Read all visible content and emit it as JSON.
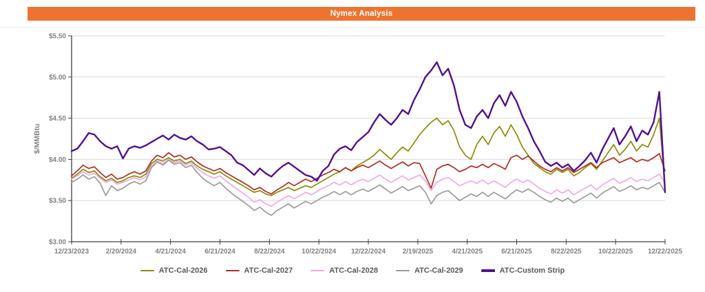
{
  "header": {
    "title": "Nymex Analysis",
    "bg_color": "#EE7330",
    "text_color": "#FFFFFF"
  },
  "chart_data": {
    "type": "line",
    "title": "Nymex Analysis",
    "xlabel": "",
    "ylabel": "$/MMBtu",
    "ylim": [
      3.0,
      5.5
    ],
    "ytick_step": 0.5,
    "ytick_labels": [
      "$3.00",
      "$3.50",
      "$4.00",
      "$4.50",
      "$5.00",
      "$5.50"
    ],
    "xtick_labels": [
      "12/23/2023",
      "2/20/2024",
      "4/21/2024",
      "6/21/2024",
      "8/22/2024",
      "10/22/2024",
      "12/22/2024",
      "2/19/2025",
      "4/21/2025",
      "6/21/2025",
      "8/22/2025",
      "10/22/2025",
      "12/22/2025"
    ],
    "x_resolution": "weekly",
    "grid": "horizontal",
    "grid_color": "#D9D9D9",
    "axis_color": "#3F3F3F",
    "tick_label_color": "#808080",
    "legend_position": "bottom",
    "series": [
      {
        "name": "ATC-Cal-2026",
        "color": "#8B8B07",
        "width": 1.7,
        "values": [
          3.77,
          3.82,
          3.88,
          3.84,
          3.86,
          3.79,
          3.74,
          3.77,
          3.72,
          3.74,
          3.78,
          3.8,
          3.78,
          3.82,
          3.95,
          4.0,
          3.98,
          4.02,
          3.98,
          4.0,
          3.95,
          3.98,
          3.92,
          3.88,
          3.85,
          3.82,
          3.85,
          3.8,
          3.76,
          3.72,
          3.68,
          3.64,
          3.6,
          3.62,
          3.58,
          3.56,
          3.6,
          3.63,
          3.66,
          3.62,
          3.65,
          3.68,
          3.66,
          3.7,
          3.74,
          3.78,
          3.82,
          3.85,
          3.9,
          3.86,
          3.92,
          3.96,
          4.0,
          4.05,
          4.12,
          4.06,
          4.0,
          4.08,
          4.15,
          4.1,
          4.2,
          4.3,
          4.38,
          4.45,
          4.5,
          4.42,
          4.47,
          4.35,
          4.15,
          4.05,
          4.0,
          4.18,
          4.28,
          4.18,
          4.32,
          4.4,
          4.28,
          4.42,
          4.3,
          4.15,
          4.05,
          3.95,
          3.9,
          3.85,
          3.82,
          3.88,
          3.84,
          3.88,
          3.8,
          3.84,
          3.9,
          3.95,
          3.88,
          3.98,
          4.08,
          4.18,
          4.05,
          4.12,
          4.22,
          4.1,
          4.18,
          4.15,
          4.3,
          4.5,
          3.66
        ]
      },
      {
        "name": "ATC-Cal-2027",
        "color": "#B02B23",
        "width": 1.7,
        "values": [
          3.8,
          3.86,
          3.93,
          3.89,
          3.91,
          3.84,
          3.78,
          3.82,
          3.76,
          3.78,
          3.82,
          3.85,
          3.82,
          3.86,
          3.98,
          4.05,
          4.02,
          4.08,
          4.03,
          4.05,
          4.0,
          4.03,
          3.97,
          3.92,
          3.89,
          3.86,
          3.89,
          3.84,
          3.8,
          3.76,
          3.72,
          3.68,
          3.63,
          3.66,
          3.61,
          3.58,
          3.63,
          3.67,
          3.72,
          3.68,
          3.72,
          3.76,
          3.73,
          3.77,
          3.81,
          3.84,
          3.88,
          3.85,
          3.9,
          3.86,
          3.9,
          3.93,
          3.9,
          3.94,
          3.98,
          3.93,
          3.89,
          3.93,
          3.97,
          3.92,
          3.96,
          3.95,
          3.8,
          3.65,
          3.88,
          3.92,
          3.94,
          3.9,
          3.85,
          3.88,
          3.92,
          3.9,
          3.94,
          3.9,
          3.95,
          3.92,
          3.88,
          4.02,
          4.05,
          4.0,
          4.04,
          3.98,
          3.92,
          3.88,
          3.85,
          3.9,
          3.86,
          3.9,
          3.84,
          3.88,
          3.92,
          3.96,
          3.9,
          3.96,
          3.99,
          4.02,
          3.96,
          3.99,
          4.02,
          3.97,
          4.0,
          3.98,
          4.02,
          4.07,
          3.86
        ]
      },
      {
        "name": "ATC-Cal-2028",
        "color": "#EFA9E6",
        "width": 1.7,
        "values": [
          3.76,
          3.8,
          3.85,
          3.81,
          3.83,
          3.77,
          3.72,
          3.75,
          3.7,
          3.72,
          3.75,
          3.78,
          3.75,
          3.79,
          3.92,
          3.98,
          3.95,
          4.0,
          3.96,
          3.98,
          3.93,
          3.96,
          3.89,
          3.84,
          3.8,
          3.77,
          3.8,
          3.74,
          3.69,
          3.64,
          3.59,
          3.54,
          3.48,
          3.51,
          3.46,
          3.43,
          3.48,
          3.52,
          3.56,
          3.52,
          3.56,
          3.6,
          3.57,
          3.61,
          3.65,
          3.68,
          3.72,
          3.69,
          3.73,
          3.69,
          3.73,
          3.76,
          3.73,
          3.77,
          3.81,
          3.76,
          3.72,
          3.76,
          3.8,
          3.75,
          3.78,
          3.81,
          3.74,
          3.62,
          3.72,
          3.76,
          3.78,
          3.73,
          3.68,
          3.71,
          3.74,
          3.71,
          3.75,
          3.7,
          3.74,
          3.7,
          3.66,
          3.72,
          3.76,
          3.72,
          3.75,
          3.7,
          3.65,
          3.61,
          3.58,
          3.63,
          3.59,
          3.63,
          3.57,
          3.61,
          3.65,
          3.69,
          3.63,
          3.69,
          3.73,
          3.77,
          3.71,
          3.74,
          3.78,
          3.73,
          3.76,
          3.74,
          3.78,
          3.82,
          3.71
        ]
      },
      {
        "name": "ATC-Cal-2029",
        "color": "#9B9B9B",
        "width": 1.7,
        "values": [
          3.72,
          3.76,
          3.81,
          3.76,
          3.79,
          3.71,
          3.56,
          3.68,
          3.62,
          3.65,
          3.7,
          3.73,
          3.7,
          3.74,
          3.9,
          3.97,
          3.93,
          3.99,
          3.94,
          3.96,
          3.9,
          3.93,
          3.84,
          3.77,
          3.72,
          3.68,
          3.72,
          3.65,
          3.59,
          3.54,
          3.49,
          3.44,
          3.38,
          3.42,
          3.36,
          3.32,
          3.38,
          3.42,
          3.46,
          3.41,
          3.45,
          3.49,
          3.46,
          3.5,
          3.54,
          3.57,
          3.61,
          3.57,
          3.61,
          3.57,
          3.61,
          3.64,
          3.61,
          3.65,
          3.69,
          3.64,
          3.59,
          3.63,
          3.67,
          3.62,
          3.65,
          3.68,
          3.6,
          3.46,
          3.56,
          3.6,
          3.62,
          3.56,
          3.5,
          3.54,
          3.58,
          3.55,
          3.6,
          3.55,
          3.6,
          3.56,
          3.52,
          3.58,
          3.63,
          3.6,
          3.64,
          3.6,
          3.55,
          3.51,
          3.48,
          3.53,
          3.49,
          3.53,
          3.47,
          3.51,
          3.55,
          3.59,
          3.53,
          3.59,
          3.63,
          3.67,
          3.61,
          3.64,
          3.68,
          3.63,
          3.66,
          3.64,
          3.68,
          3.72,
          3.6
        ]
      },
      {
        "name": "ATC-Custom Strip",
        "color": "#52108F",
        "width": 2.4,
        "values": [
          4.1,
          4.13,
          4.22,
          4.32,
          4.3,
          4.22,
          4.16,
          4.13,
          4.16,
          4.01,
          4.13,
          4.16,
          4.14,
          4.17,
          4.21,
          4.25,
          4.29,
          4.24,
          4.3,
          4.26,
          4.24,
          4.28,
          4.22,
          4.18,
          4.12,
          4.13,
          4.15,
          4.1,
          4.05,
          3.96,
          3.93,
          3.87,
          3.81,
          3.89,
          3.83,
          3.79,
          3.86,
          3.92,
          3.96,
          3.91,
          3.86,
          3.81,
          3.79,
          3.74,
          3.86,
          3.92,
          4.06,
          4.13,
          4.16,
          4.11,
          4.21,
          4.27,
          4.33,
          4.45,
          4.55,
          4.48,
          4.42,
          4.5,
          4.6,
          4.55,
          4.72,
          4.85,
          5.0,
          5.08,
          5.18,
          5.02,
          5.1,
          4.9,
          4.6,
          4.42,
          4.38,
          4.52,
          4.6,
          4.5,
          4.68,
          4.78,
          4.65,
          4.82,
          4.7,
          4.52,
          4.38,
          4.22,
          4.1,
          3.97,
          3.92,
          3.96,
          3.9,
          3.94,
          3.86,
          3.92,
          3.99,
          4.08,
          3.96,
          4.12,
          4.25,
          4.38,
          4.18,
          4.28,
          4.4,
          4.22,
          4.35,
          4.3,
          4.45,
          4.82,
          3.6
        ]
      }
    ]
  }
}
